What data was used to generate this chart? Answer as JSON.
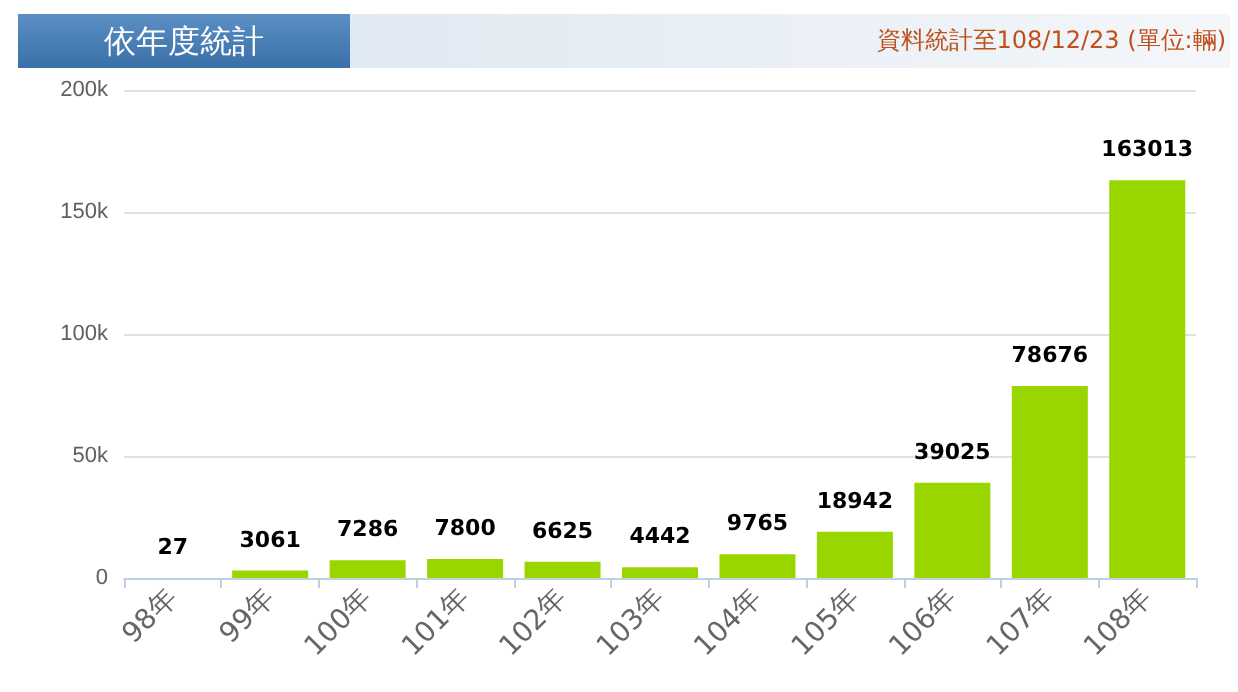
{
  "chart_data": {
    "type": "bar",
    "title": "依年度統計",
    "subtitle": "資料統計至108/12/23 (單位:輛)",
    "categories": [
      "98年",
      "99年",
      "100年",
      "101年",
      "102年",
      "103年",
      "104年",
      "105年",
      "106年",
      "107年",
      "108年"
    ],
    "values": [
      27,
      3061,
      7286,
      7800,
      6625,
      4442,
      9765,
      18942,
      39025,
      78676,
      163013
    ],
    "color": "#99d600",
    "data_labels": true,
    "grid": "y",
    "ylim": [
      0,
      200000
    ],
    "yticks": [
      {
        "value": 0,
        "label": "0"
      },
      {
        "value": 50000,
        "label": "50k"
      },
      {
        "value": 100000,
        "label": "100k"
      },
      {
        "value": 150000,
        "label": "150k"
      },
      {
        "value": 200000,
        "label": "200k"
      }
    ]
  }
}
